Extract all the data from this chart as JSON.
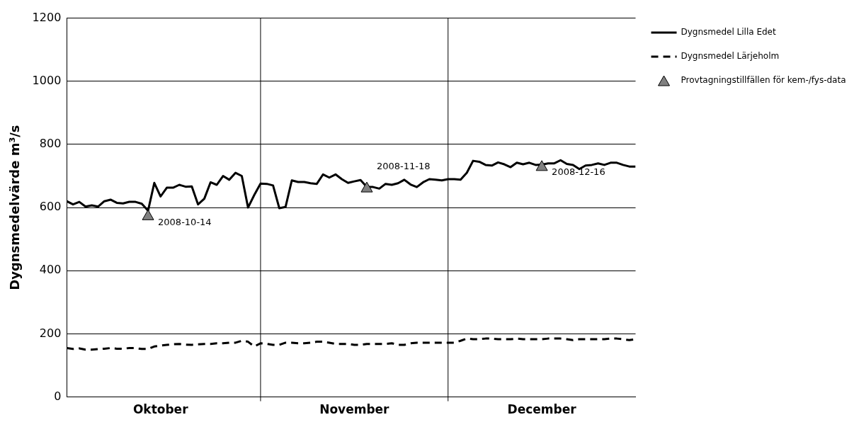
{
  "chart_data": {
    "type": "line",
    "ylabel": "Dygnsmedelvärde m³/s",
    "xlim": [
      "2008-10-01",
      "2008-12-31"
    ],
    "xticks": [
      {
        "value": "2008-10-16",
        "label": "Oktober"
      },
      {
        "value": "2008-11-16",
        "label": "November"
      },
      {
        "value": "2008-12-16",
        "label": "December"
      }
    ],
    "ref_lines": [
      {
        "axis": "x",
        "value": "2008-11-01",
        "color": "#000000"
      },
      {
        "axis": "x",
        "value": "2008-12-01",
        "color": "#000000"
      }
    ],
    "ylim": [
      0,
      1200
    ],
    "yticks": [
      0,
      200,
      400,
      600,
      800,
      1000,
      1200
    ],
    "grid": "y",
    "legend": "right",
    "series": [
      {
        "name": "Dygnsmedel Lilla Edet",
        "color": "#000000",
        "type": "line",
        "line_style": "solid",
        "marker": "none",
        "x": [
          "2008-10-01",
          "2008-10-02",
          "2008-10-03",
          "2008-10-04",
          "2008-10-05",
          "2008-10-06",
          "2008-10-07",
          "2008-10-08",
          "2008-10-09",
          "2008-10-10",
          "2008-10-11",
          "2008-10-12",
          "2008-10-13",
          "2008-10-14",
          "2008-10-15",
          "2008-10-16",
          "2008-10-17",
          "2008-10-18",
          "2008-10-19",
          "2008-10-20",
          "2008-10-21",
          "2008-10-22",
          "2008-10-23",
          "2008-10-24",
          "2008-10-25",
          "2008-10-26",
          "2008-10-27",
          "2008-10-28",
          "2008-10-29",
          "2008-10-30",
          "2008-10-31",
          "2008-11-01",
          "2008-11-02",
          "2008-11-03",
          "2008-11-04",
          "2008-11-05",
          "2008-11-06",
          "2008-11-07",
          "2008-11-08",
          "2008-11-09",
          "2008-11-10",
          "2008-11-11",
          "2008-11-12",
          "2008-11-13",
          "2008-11-14",
          "2008-11-15",
          "2008-11-16",
          "2008-11-17",
          "2008-11-18",
          "2008-11-19",
          "2008-11-20",
          "2008-11-21",
          "2008-11-22",
          "2008-11-23",
          "2008-11-24",
          "2008-11-25",
          "2008-11-26",
          "2008-11-27",
          "2008-11-28",
          "2008-11-29",
          "2008-11-30",
          "2008-12-01",
          "2008-12-02",
          "2008-12-03",
          "2008-12-04",
          "2008-12-05",
          "2008-12-06",
          "2008-12-07",
          "2008-12-08",
          "2008-12-09",
          "2008-12-10",
          "2008-12-11",
          "2008-12-12",
          "2008-12-13",
          "2008-12-14",
          "2008-12-15",
          "2008-12-16",
          "2008-12-17",
          "2008-12-18",
          "2008-12-19",
          "2008-12-20",
          "2008-12-21",
          "2008-12-22",
          "2008-12-23",
          "2008-12-24",
          "2008-12-25",
          "2008-12-26",
          "2008-12-27",
          "2008-12-28",
          "2008-12-29",
          "2008-12-30",
          "2008-12-31"
        ],
        "values": [
          620,
          610,
          618,
          603,
          607,
          603,
          620,
          625,
          615,
          613,
          618,
          618,
          612,
          590,
          678,
          635,
          663,
          663,
          672,
          666,
          667,
          610,
          628,
          680,
          672,
          700,
          688,
          710,
          700,
          600,
          640,
          676,
          675,
          670,
          598,
          602,
          686,
          681,
          681,
          677,
          675,
          705,
          695,
          705,
          690,
          678,
          683,
          687,
          665,
          665,
          660,
          675,
          672,
          677,
          688,
          673,
          665,
          680,
          690,
          688,
          686,
          690,
          690,
          688,
          710,
          748,
          745,
          735,
          733,
          743,
          737,
          728,
          742,
          737,
          742,
          735,
          736,
          740,
          740,
          750,
          738,
          735,
          722,
          733,
          735,
          740,
          735,
          742,
          742,
          735,
          730,
          730
        ]
      },
      {
        "name": "Dygnsmedel Lärjeholm",
        "color": "#000000",
        "type": "line",
        "line_style": "dashed",
        "marker": "none",
        "x": [
          "2008-10-01",
          "2008-10-02",
          "2008-10-03",
          "2008-10-04",
          "2008-10-05",
          "2008-10-06",
          "2008-10-07",
          "2008-10-08",
          "2008-10-09",
          "2008-10-10",
          "2008-10-11",
          "2008-10-12",
          "2008-10-13",
          "2008-10-14",
          "2008-10-15",
          "2008-10-16",
          "2008-10-17",
          "2008-10-18",
          "2008-10-19",
          "2008-10-20",
          "2008-10-21",
          "2008-10-22",
          "2008-10-23",
          "2008-10-24",
          "2008-10-25",
          "2008-10-26",
          "2008-10-27",
          "2008-10-28",
          "2008-10-29",
          "2008-10-30",
          "2008-10-31",
          "2008-11-01",
          "2008-11-02",
          "2008-11-03",
          "2008-11-04",
          "2008-11-05",
          "2008-11-06",
          "2008-11-07",
          "2008-11-08",
          "2008-11-09",
          "2008-11-10",
          "2008-11-11",
          "2008-11-12",
          "2008-11-13",
          "2008-11-14",
          "2008-11-15",
          "2008-11-16",
          "2008-11-17",
          "2008-11-18",
          "2008-11-19",
          "2008-11-20",
          "2008-11-21",
          "2008-11-22",
          "2008-11-23",
          "2008-11-24",
          "2008-11-25",
          "2008-11-26",
          "2008-11-27",
          "2008-11-28",
          "2008-11-29",
          "2008-11-30",
          "2008-12-01",
          "2008-12-02",
          "2008-12-03",
          "2008-12-04",
          "2008-12-05",
          "2008-12-06",
          "2008-12-07",
          "2008-12-08",
          "2008-12-09",
          "2008-12-10",
          "2008-12-11",
          "2008-12-12",
          "2008-12-13",
          "2008-12-14",
          "2008-12-15",
          "2008-12-16",
          "2008-12-17",
          "2008-12-18",
          "2008-12-19",
          "2008-12-20",
          "2008-12-21",
          "2008-12-22",
          "2008-12-23",
          "2008-12-24",
          "2008-12-25",
          "2008-12-26",
          "2008-12-27",
          "2008-12-28",
          "2008-12-29",
          "2008-12-30",
          "2008-12-31"
        ],
        "values": [
          155,
          152,
          154,
          150,
          150,
          152,
          153,
          155,
          153,
          153,
          155,
          155,
          152,
          152,
          160,
          163,
          165,
          167,
          168,
          166,
          165,
          167,
          168,
          168,
          170,
          170,
          172,
          172,
          178,
          175,
          160,
          170,
          168,
          165,
          165,
          172,
          172,
          170,
          170,
          172,
          175,
          175,
          172,
          168,
          168,
          168,
          165,
          165,
          168,
          168,
          168,
          168,
          170,
          165,
          165,
          170,
          172,
          172,
          172,
          172,
          172,
          172,
          172,
          178,
          185,
          183,
          183,
          185,
          185,
          183,
          183,
          183,
          185,
          183,
          183,
          183,
          183,
          185,
          185,
          185,
          183,
          180,
          183,
          183,
          183,
          183,
          183,
          185,
          185,
          183,
          180,
          183
        ]
      },
      {
        "name": "Provtagningstillfällen för kem-/fys-data",
        "color": "#808080",
        "type": "scatter",
        "marker": "triangle",
        "x": [
          "2008-10-14",
          "2008-11-18",
          "2008-12-16"
        ],
        "values": [
          577,
          665,
          733
        ]
      }
    ],
    "annotations": [
      {
        "text": "2008-10-14",
        "x": "2008-10-14",
        "y": 575
      },
      {
        "text": "2008-11-18",
        "x": "2008-11-18",
        "y": 665
      },
      {
        "text": "2008-12-16",
        "x": "2008-12-16",
        "y": 733
      }
    ]
  }
}
